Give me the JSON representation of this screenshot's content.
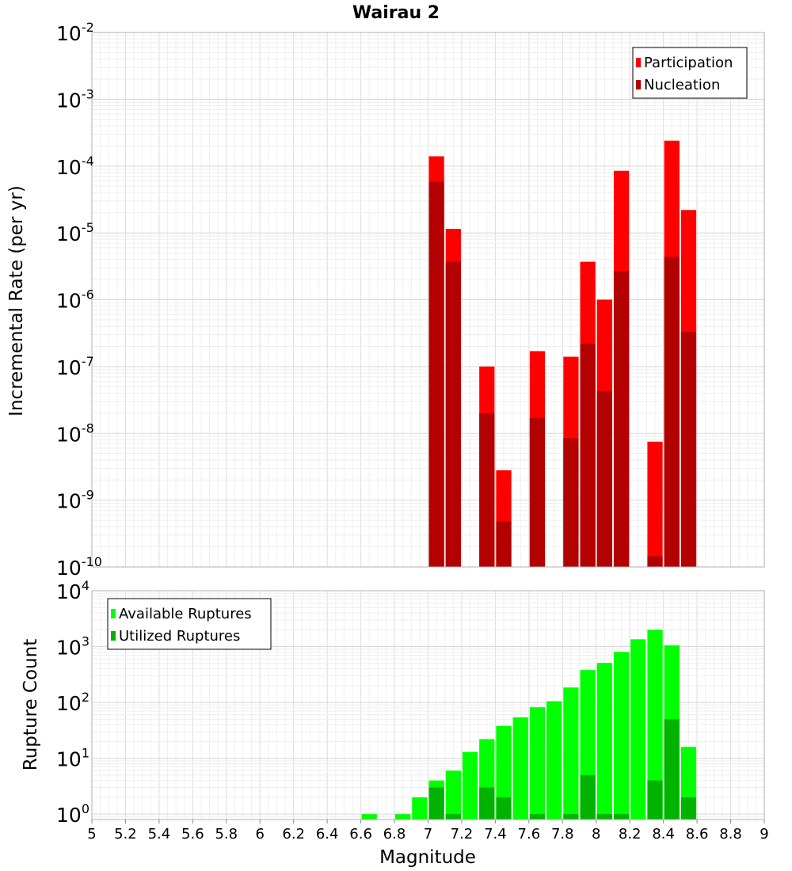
{
  "chart_data": [
    {
      "type": "bar",
      "title": "Wairau 2",
      "ylabel": "Incremental Rate (per yr)",
      "yscale": "log",
      "ylim": [
        1e-10,
        0.01
      ],
      "xlim": [
        5,
        9
      ],
      "grid": true,
      "legend_position": "top-right",
      "colors": {
        "Participation": "#ff0000",
        "Nucleation": "#b30000"
      },
      "series": [
        {
          "name": "Participation",
          "x": [
            7.05,
            7.15,
            7.35,
            7.45,
            7.65,
            7.85,
            7.95,
            8.05,
            8.15,
            8.35,
            8.45,
            8.55
          ],
          "values": [
            0.00014,
            1.15e-05,
            1e-07,
            2.8e-09,
            1.7e-07,
            1.4e-07,
            3.7e-06,
            1e-06,
            8.5e-05,
            7.5e-09,
            0.00024,
            2.2e-05
          ]
        },
        {
          "name": "Nucleation",
          "x": [
            7.05,
            7.15,
            7.35,
            7.45,
            7.65,
            7.85,
            7.95,
            8.05,
            8.15,
            8.35,
            8.45,
            8.55
          ],
          "values": [
            5.8e-05,
            3.7e-06,
            2e-08,
            4.8e-10,
            1.7e-08,
            8.5e-09,
            2.2e-07,
            4.3e-08,
            2.7e-06,
            1.45e-10,
            4.4e-06,
            3.3e-07
          ]
        }
      ]
    },
    {
      "type": "bar",
      "xlabel": "Magnitude",
      "ylabel": "Rupture Count",
      "yscale": "log",
      "ylim": [
        0.8,
        10000
      ],
      "xlim": [
        5,
        9
      ],
      "grid": true,
      "legend_position": "top-left",
      "colors": {
        "Available Ruptures": "#00ff00",
        "Utilized Ruptures": "#00b300"
      },
      "xticks": [
        "5",
        "5.2",
        "5.4",
        "5.6",
        "5.8",
        "6",
        "6.2",
        "6.4",
        "6.6",
        "6.8",
        "7",
        "7.2",
        "7.4",
        "7.6",
        "7.8",
        "8",
        "8.2",
        "8.4",
        "8.6",
        "8.8",
        "9"
      ],
      "series": [
        {
          "name": "Available Ruptures",
          "x": [
            6.65,
            6.85,
            6.95,
            7.05,
            7.15,
            7.25,
            7.35,
            7.45,
            7.55,
            7.65,
            7.75,
            7.85,
            7.95,
            8.05,
            8.15,
            8.25,
            8.35,
            8.45,
            8.55
          ],
          "values": [
            1,
            1,
            2,
            4,
            6,
            13,
            22,
            38,
            54,
            82,
            105,
            185,
            380,
            510,
            800,
            1350,
            2000,
            1050,
            16
          ]
        },
        {
          "name": "Utilized Ruptures",
          "x": [
            7.05,
            7.15,
            7.35,
            7.45,
            7.65,
            7.85,
            7.95,
            8.05,
            8.15,
            8.35,
            8.45,
            8.55
          ],
          "values": [
            3,
            1,
            3,
            2,
            1,
            1,
            5,
            1,
            1,
            4,
            50,
            2
          ]
        }
      ]
    }
  ],
  "top_yticks": [
    {
      "base": "10",
      "exp": "-2",
      "value": 0.01
    },
    {
      "base": "10",
      "exp": "-3",
      "value": 0.001
    },
    {
      "base": "10",
      "exp": "-4",
      "value": 0.0001
    },
    {
      "base": "10",
      "exp": "-5",
      "value": 1e-05
    },
    {
      "base": "10",
      "exp": "-6",
      "value": 1e-06
    },
    {
      "base": "10",
      "exp": "-7",
      "value": 1e-07
    },
    {
      "base": "10",
      "exp": "-8",
      "value": 1e-08
    },
    {
      "base": "10",
      "exp": "-9",
      "value": 1e-09
    },
    {
      "base": "10",
      "exp": "-10",
      "value": 1e-10
    }
  ],
  "bottom_yticks": [
    {
      "base": "10",
      "exp": "4",
      "value": 10000
    },
    {
      "base": "10",
      "exp": "3",
      "value": 1000
    },
    {
      "base": "10",
      "exp": "2",
      "value": 100
    },
    {
      "base": "10",
      "exp": "1",
      "value": 10
    },
    {
      "base": "10",
      "exp": "0",
      "value": 1
    }
  ]
}
